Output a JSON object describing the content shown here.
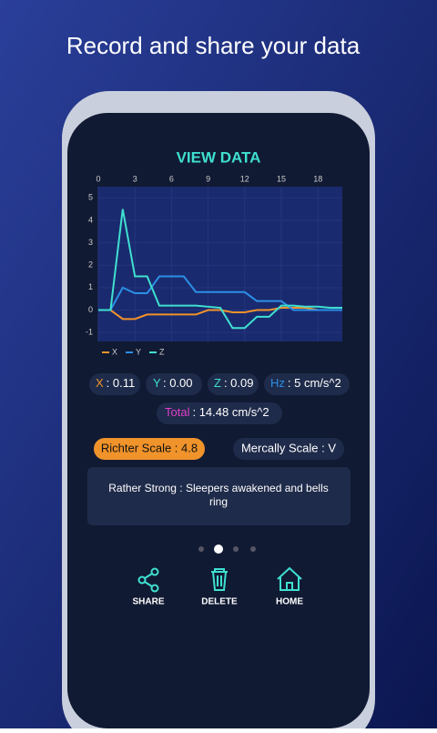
{
  "headline": "Record and share your data",
  "screen": {
    "title": "VIEW DATA",
    "stats": [
      {
        "label": "X",
        "value": ": 0.11"
      },
      {
        "label": "Y",
        "value": ": 0.00"
      },
      {
        "label": "Z",
        "value": ": 0.09"
      },
      {
        "label": "Hz",
        "value": ": 5 cm/s^2"
      }
    ],
    "total": {
      "label": "Total",
      "value": ": 14.48 cm/s^2"
    },
    "richter": "Richter Scale : 4.8",
    "mercally": "Mercally Scale : V",
    "description": [
      "Rather Strong : Sleepers awakened and bells",
      "ring"
    ],
    "actions": [
      "SHARE",
      "DELETE",
      "HOME"
    ]
  },
  "chart_data": {
    "type": "line",
    "x": [
      0,
      1,
      2,
      3,
      4,
      5,
      6,
      7,
      8,
      9,
      10,
      11,
      12,
      13,
      14,
      15,
      16,
      17,
      18,
      19,
      20
    ],
    "series": [
      {
        "name": "X",
        "color": "#f0932b",
        "values": [
          0,
          0,
          -0.4,
          -0.4,
          -0.2,
          -0.2,
          -0.2,
          -0.2,
          -0.2,
          0,
          0,
          -0.1,
          -0.1,
          0,
          0,
          0.1,
          0.1,
          0.1,
          0,
          0,
          0
        ]
      },
      {
        "name": "Y",
        "color": "#2b8fe6",
        "values": [
          0,
          0,
          1,
          0.75,
          0.75,
          1.5,
          1.5,
          1.5,
          0.8,
          0.8,
          0.8,
          0.8,
          0.8,
          0.4,
          0.4,
          0.4,
          0,
          0,
          0,
          0,
          0
        ]
      },
      {
        "name": "Z",
        "color": "#3fe0d0",
        "values": [
          0,
          0,
          4.5,
          1.5,
          1.5,
          0.2,
          0.2,
          0.2,
          0.2,
          0.15,
          0.1,
          -0.8,
          -0.8,
          -0.3,
          -0.3,
          0.2,
          0.2,
          0.15,
          0.15,
          0.1,
          0.1
        ]
      }
    ],
    "xlim": [
      0,
      20
    ],
    "ylim": [
      -1.4,
      5.5
    ],
    "xticks": [
      0,
      3,
      6,
      9,
      12,
      15,
      18
    ],
    "yticks": [
      -1,
      0,
      1,
      2,
      3,
      4,
      5
    ],
    "grid": true
  }
}
